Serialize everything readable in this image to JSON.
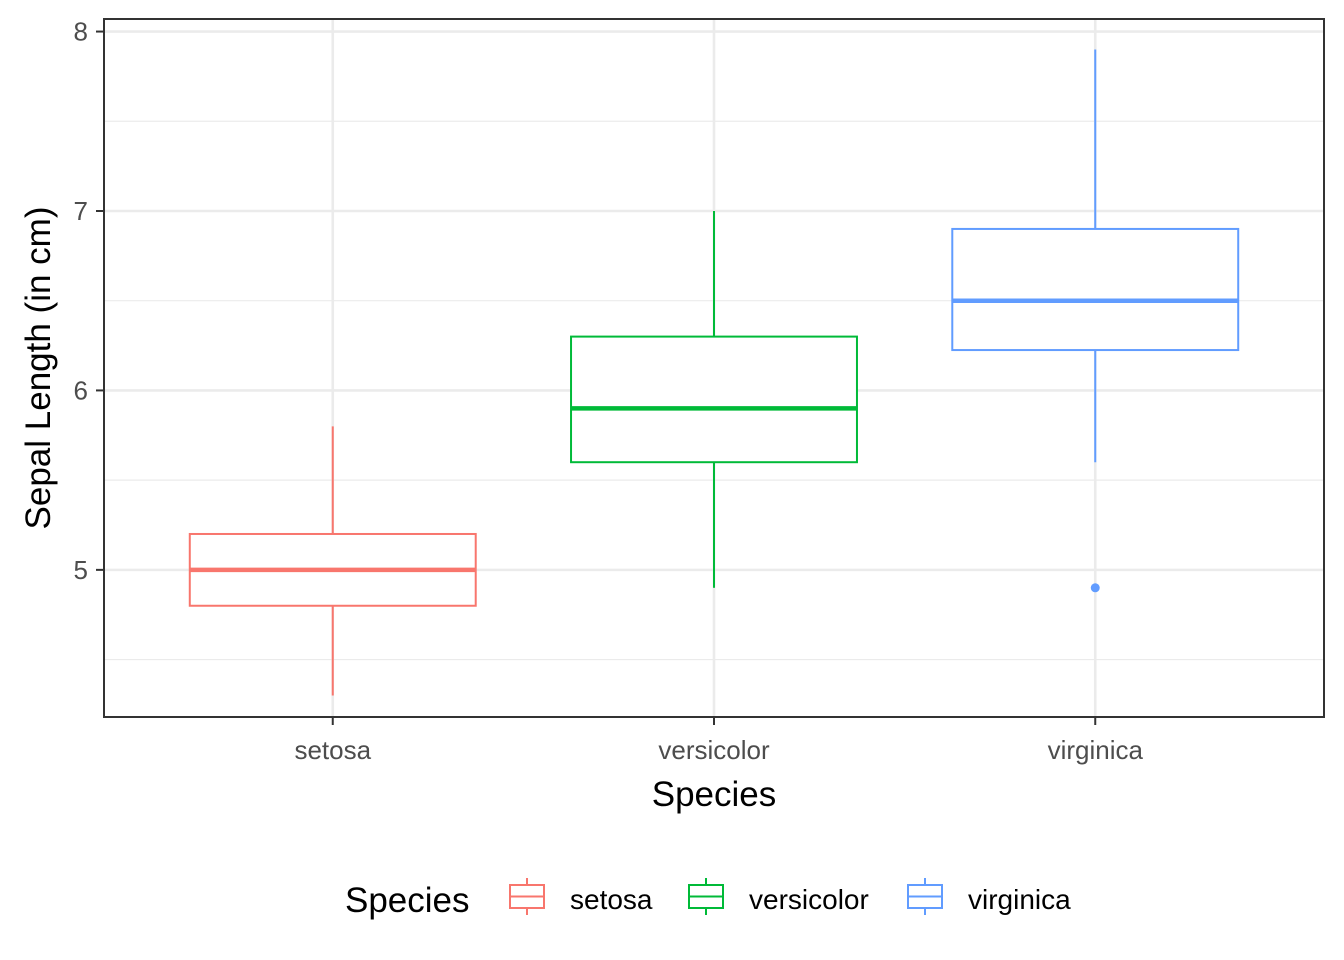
{
  "chart_data": {
    "type": "box",
    "title": "",
    "xlabel": "Species",
    "ylabel": "Sepal Length (in cm)",
    "categories": [
      "setosa",
      "versicolor",
      "virginica"
    ],
    "ylim": [
      4.18,
      8.07
    ],
    "yticks": [
      5,
      6,
      7,
      8
    ],
    "yminor": [
      4.5,
      5.5,
      6.5,
      7.5
    ],
    "grid": true,
    "legend": {
      "title": "Species",
      "position": "bottom"
    },
    "series": [
      {
        "name": "setosa",
        "color": "#F8766D",
        "min": 4.3,
        "q1": 4.8,
        "median": 5.0,
        "q3": 5.2,
        "max": 5.8,
        "outliers": []
      },
      {
        "name": "versicolor",
        "color": "#00BA38",
        "min": 4.9,
        "q1": 5.6,
        "median": 5.9,
        "q3": 6.3,
        "max": 7.0,
        "outliers": []
      },
      {
        "name": "virginica",
        "color": "#619CFF",
        "min": 5.6,
        "q1": 6.225,
        "median": 6.5,
        "q3": 6.9,
        "max": 7.9,
        "outliers": [
          4.9
        ]
      }
    ]
  }
}
